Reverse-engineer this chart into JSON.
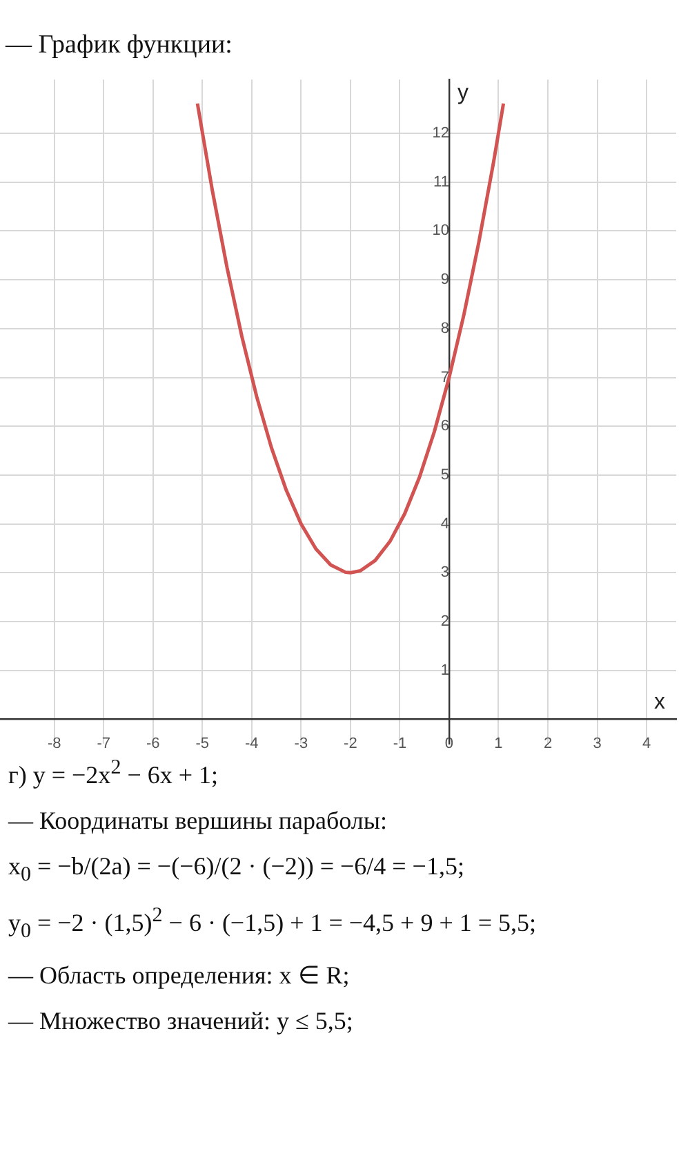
{
  "chart_data": {
    "type": "line",
    "title": "— График функции:",
    "xlabel": "x",
    "ylabel": "y",
    "x": [
      -5.1,
      -4.8,
      -4.5,
      -4.2,
      -3.9,
      -3.6,
      -3.3,
      -3,
      -2.7,
      -2.4,
      -2.1,
      -2,
      -1.8,
      -1.5,
      -1.2,
      -0.9,
      -0.6,
      -0.3,
      0,
      0.3,
      0.6,
      0.9,
      1.1
    ],
    "series": [
      {
        "color": "#d25452",
        "values": [
          12.61,
          10.84,
          9.25,
          7.84,
          6.61,
          5.56,
          4.69,
          4,
          3.49,
          3.16,
          3.01,
          3,
          3.04,
          3.25,
          3.64,
          4.21,
          4.96,
          5.89,
          7,
          8.29,
          9.76,
          11.41,
          12.61
        ]
      }
    ],
    "xlim": [
      -9.1,
      4.6
    ],
    "ylim": [
      -0.5,
      13.1
    ],
    "xticks": [
      -8,
      -7,
      -6,
      -5,
      -4,
      -3,
      -2,
      -1,
      0,
      1,
      2,
      3,
      4
    ],
    "yticks": [
      1,
      2,
      3,
      4,
      5,
      6,
      7,
      8,
      9,
      10,
      11,
      12
    ],
    "grid": true,
    "marker": "none",
    "line_style": "solid",
    "annotations": [
      "г) y = −2x$^{2}$ − 6x + 1;",
      "— Координаты вершины параболы:",
      "x$_{0}$ = −b/(2a) = −(−6)/(2 · (−2)) = −6/4 = −1,5;",
      "y$_{0}$ = −2 · (1,5)$^{2}$ − 6 · (−1,5) + 1 = −4,5 + 9 + 1 = 5,5;",
      "— Область определения: x ∈ R;",
      "— Множество значений: y ≤ 5,5;"
    ]
  }
}
